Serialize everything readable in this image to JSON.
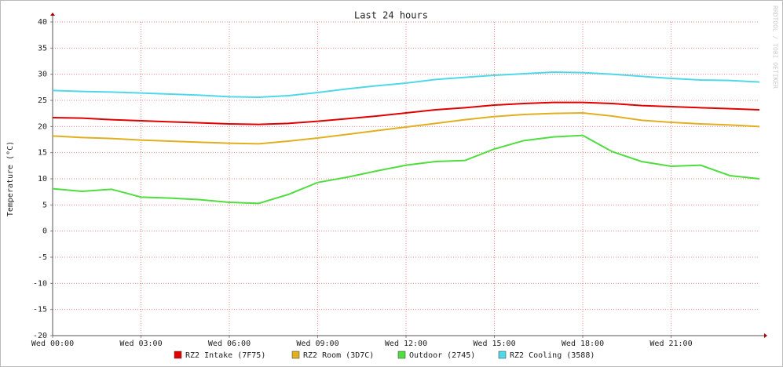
{
  "chart_data": {
    "type": "line",
    "title": "Last 24 hours",
    "y_label": "Temperature (°C)",
    "watermark": "RRDTOOL / TOBI OETIKER",
    "x": [
      0,
      1,
      2,
      3,
      4,
      5,
      6,
      7,
      8,
      9,
      10,
      11,
      12,
      13,
      14,
      15,
      16,
      17,
      18,
      19,
      20,
      21,
      22,
      23,
      24
    ],
    "xlim": [
      0,
      24
    ],
    "xticks": [
      {
        "value": 0,
        "label": "Wed 00:00"
      },
      {
        "value": 3,
        "label": "Wed 03:00"
      },
      {
        "value": 6,
        "label": "Wed 06:00"
      },
      {
        "value": 9,
        "label": "Wed 09:00"
      },
      {
        "value": 12,
        "label": "Wed 12:00"
      },
      {
        "value": 15,
        "label": "Wed 15:00"
      },
      {
        "value": 18,
        "label": "Wed 18:00"
      },
      {
        "value": 21,
        "label": "Wed 21:00"
      }
    ],
    "ylim": [
      -20,
      40
    ],
    "yticks": [
      -20,
      -15,
      -10,
      -5,
      0,
      5,
      10,
      15,
      20,
      25,
      30,
      35,
      40
    ],
    "grid": true,
    "series": [
      {
        "name": "RZ2 Intake (7F75)",
        "color": "#e00000",
        "values": [
          21.7,
          21.6,
          21.3,
          21.1,
          20.9,
          20.7,
          20.5,
          20.4,
          20.6,
          21.0,
          21.5,
          22.0,
          22.6,
          23.2,
          23.6,
          24.1,
          24.4,
          24.6,
          24.6,
          24.4,
          24.0,
          23.8,
          23.6,
          23.4,
          23.2
        ]
      },
      {
        "name": "RZ2 Room (3D7C)",
        "color": "#e0b020",
        "values": [
          18.2,
          17.9,
          17.7,
          17.4,
          17.2,
          17.0,
          16.8,
          16.7,
          17.2,
          17.8,
          18.5,
          19.2,
          19.9,
          20.6,
          21.3,
          21.9,
          22.3,
          22.5,
          22.6,
          22.0,
          21.2,
          20.8,
          20.5,
          20.3,
          20.0
        ]
      },
      {
        "name": "Outdoor (2745)",
        "color": "#50dd40",
        "values": [
          8.1,
          7.6,
          8.0,
          6.5,
          6.3,
          6.0,
          5.5,
          5.3,
          7.0,
          9.3,
          10.3,
          11.5,
          12.6,
          13.3,
          13.5,
          15.7,
          17.3,
          18.0,
          18.3,
          15.2,
          13.3,
          12.4,
          12.6,
          10.6,
          10.0
        ]
      },
      {
        "name": "RZ2 Cooling (3588)",
        "color": "#50d8e8",
        "values": [
          26.9,
          26.7,
          26.6,
          26.4,
          26.2,
          26.0,
          25.7,
          25.6,
          25.9,
          26.5,
          27.2,
          27.8,
          28.3,
          29.0,
          29.4,
          29.8,
          30.1,
          30.4,
          30.3,
          30.0,
          29.6,
          29.2,
          28.9,
          28.8,
          28.5
        ]
      }
    ]
  }
}
